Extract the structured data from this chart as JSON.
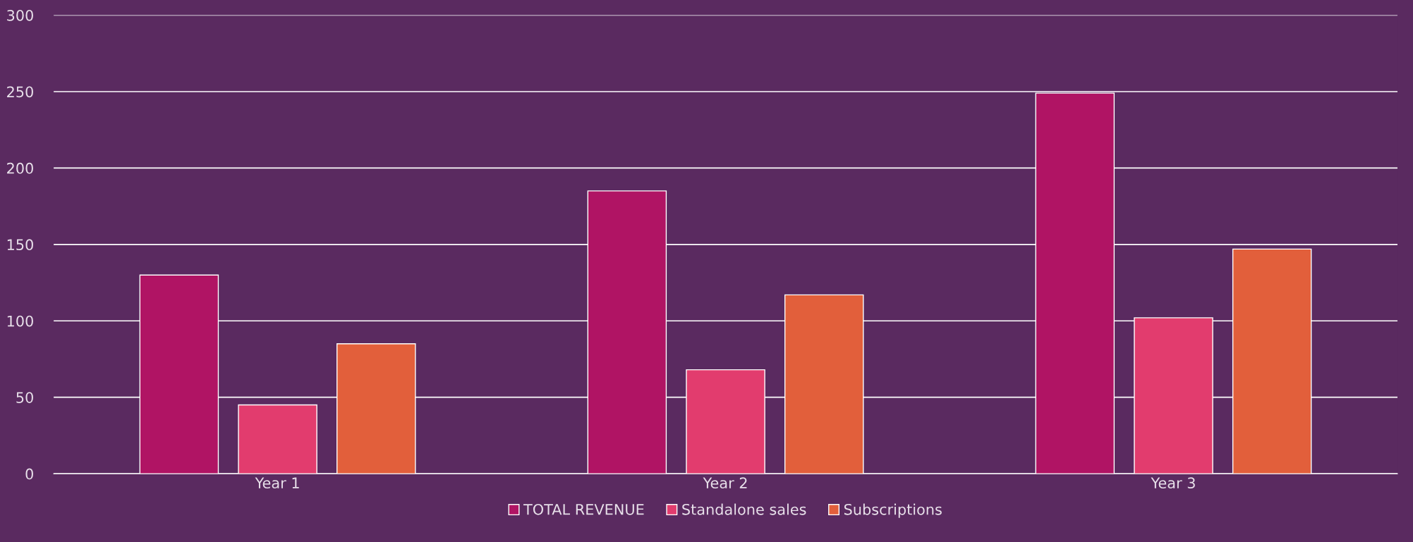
{
  "chart_data": {
    "type": "bar",
    "categories": [
      "Year 1",
      "Year 2",
      "Year 3"
    ],
    "series": [
      {
        "name": "TOTAL REVENUE",
        "color": "#b01464",
        "values": [
          130,
          185,
          249
        ]
      },
      {
        "name": "Standalone sales",
        "color": "#e23c6e",
        "values": [
          45,
          68,
          102
        ]
      },
      {
        "name": "Subscriptions",
        "color": "#e25f3b",
        "values": [
          85,
          117,
          147
        ]
      }
    ],
    "ylim": [
      0,
      300
    ],
    "yticks": [
      0,
      50,
      100,
      150,
      200,
      250,
      300
    ],
    "grid": "y",
    "legend": "bottom"
  }
}
